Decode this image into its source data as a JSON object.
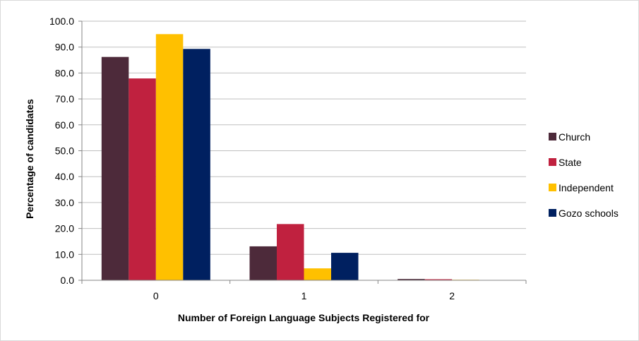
{
  "chart_data": {
    "type": "bar",
    "title": "",
    "categories": [
      "0",
      "1",
      "2"
    ],
    "series": [
      {
        "name": "Church",
        "color": "#4D2A3A",
        "values": [
          86.2,
          13.1,
          0.5
        ]
      },
      {
        "name": "State",
        "color": "#C0213F",
        "values": [
          77.9,
          21.7,
          0.4
        ]
      },
      {
        "name": "Independent",
        "color": "#FFC000",
        "values": [
          95.0,
          4.6,
          0.2
        ]
      },
      {
        "name": "Gozo schools",
        "color": "#002060",
        "values": [
          89.3,
          10.6,
          0.0
        ]
      }
    ],
    "xlabel": "Number of Foreign Language Subjects Registered for",
    "ylabel": "Percentage of candidates",
    "ylim": [
      0,
      100
    ],
    "yticks": [
      "0.0",
      "10.0",
      "20.0",
      "30.0",
      "40.0",
      "50.0",
      "60.0",
      "70.0",
      "80.0",
      "90.0",
      "100.0"
    ],
    "grid": true,
    "legend_position": "right"
  }
}
